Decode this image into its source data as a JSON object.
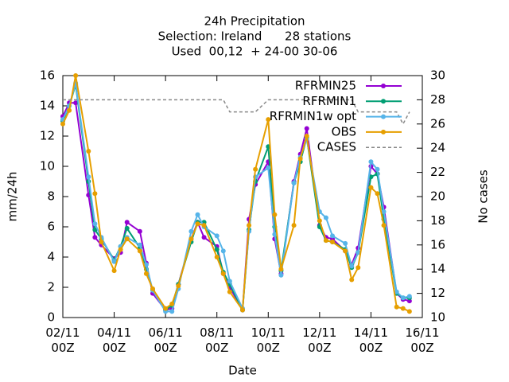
{
  "chart_data": {
    "type": "line",
    "title": [
      "24h Precipitation",
      "Selection: Ireland      28 stations",
      "Used  00,12  + 24-00 30-06"
    ],
    "xlabel": "Date",
    "ylabel": "mm/24h",
    "y2label": "No cases",
    "x": [
      "02/11 00Z",
      "02/11 06Z",
      "02/11 12Z",
      "03/11 00Z",
      "03/11 06Z",
      "03/11 12Z",
      "04/11 00Z",
      "04/11 06Z",
      "04/11 12Z",
      "05/11 00Z",
      "05/11 06Z",
      "05/11 12Z",
      "06/11 00Z",
      "06/11 06Z",
      "06/11 12Z",
      "07/11 00Z",
      "07/11 06Z",
      "07/11 12Z",
      "08/11 00Z",
      "08/11 06Z",
      "08/11 12Z",
      "09/11 00Z",
      "09/11 06Z",
      "09/11 12Z",
      "10/11 00Z",
      "10/11 06Z",
      "10/11 12Z",
      "11/11 00Z",
      "11/11 06Z",
      "11/11 12Z",
      "12/11 00Z",
      "12/11 06Z",
      "12/11 12Z",
      "13/11 00Z",
      "13/11 06Z",
      "13/11 12Z",
      "14/11 00Z",
      "14/11 06Z",
      "14/11 12Z",
      "15/11 00Z",
      "15/11 06Z",
      "15/11 12Z"
    ],
    "series": [
      {
        "name": "RFRMIN25",
        "color": "#9400d3",
        "values": [
          13.3,
          14.2,
          14.2,
          8.1,
          5.3,
          4.8,
          3.9,
          4.3,
          6.3,
          5.7,
          3.6,
          1.6,
          0.5,
          0.6,
          2.2,
          5.2,
          6.3,
          5.3,
          4.7,
          2.9,
          2.0,
          0.5,
          6.5,
          8.8,
          10.3,
          5.2,
          2.9,
          9.0,
          10.8,
          12.5,
          6.1,
          5.3,
          5.2,
          4.4,
          3.5,
          4.6,
          10.0,
          9.5,
          7.3,
          1.6,
          1.2,
          1.1
        ]
      },
      {
        "name": "RFRMIN1",
        "color": "#009e73",
        "values": [
          13.0,
          14.0,
          15.4,
          9.0,
          5.8,
          5.2,
          3.8,
          4.7,
          5.9,
          4.6,
          3.2,
          1.8,
          0.5,
          0.8,
          2.2,
          5.0,
          6.3,
          6.3,
          4.5,
          3.0,
          2.2,
          0.5,
          5.8,
          9.0,
          11.3,
          6.0,
          3.1,
          8.9,
          10.3,
          11.9,
          6.0,
          5.1,
          5.0,
          4.5,
          3.3,
          4.3,
          9.3,
          9.5,
          6.5,
          1.6,
          1.3,
          1.3
        ]
      },
      {
        "name": "RFRMIN1w opt",
        "color": "#56b4e9",
        "values": [
          13.1,
          14.0,
          15.5,
          9.3,
          6.2,
          5.3,
          3.7,
          4.7,
          5.3,
          4.8,
          3.5,
          1.8,
          0.4,
          0.4,
          1.9,
          5.7,
          6.8,
          6.0,
          5.4,
          4.4,
          2.4,
          0.6,
          5.7,
          9.3,
          9.9,
          5.5,
          2.8,
          8.9,
          10.6,
          11.8,
          7.0,
          6.6,
          5.4,
          4.9,
          3.4,
          4.3,
          10.3,
          9.8,
          7.0,
          1.7,
          1.3,
          1.4
        ]
      },
      {
        "name": "OBS",
        "color": "#e69f00",
        "values": [
          12.8,
          13.7,
          16.0,
          11.0,
          8.2,
          5.0,
          3.1,
          4.5,
          5.2,
          4.4,
          2.9,
          1.9,
          0.6,
          0.9,
          2.1,
          5.2,
          6.2,
          6.1,
          4.0,
          2.9,
          1.7,
          0.5,
          6.1,
          9.8,
          13.1,
          6.8,
          3.2,
          6.1,
          10.5,
          12.0,
          6.4,
          5.1,
          5.0,
          4.4,
          2.5,
          3.3,
          8.6,
          8.2,
          6.1,
          0.7,
          0.6,
          0.4
        ]
      },
      {
        "name": "CASES",
        "color": "#888888",
        "dashed": true,
        "axis": "y2",
        "values": [
          28,
          28,
          28,
          28,
          28,
          28,
          28,
          28,
          28,
          28,
          28,
          28,
          28,
          28,
          28,
          28,
          28,
          28,
          28,
          28,
          27,
          27,
          27,
          27,
          28,
          28,
          28,
          28,
          28,
          28,
          28,
          28,
          28,
          28,
          28,
          27,
          27,
          27,
          27,
          27,
          26,
          27
        ]
      }
    ],
    "xlim": [
      "02/11 00Z",
      "16/11 00Z"
    ],
    "xticks": [
      "02/11 00Z",
      "04/11 00Z",
      "06/11 00Z",
      "08/11 00Z",
      "10/11 00Z",
      "12/11 00Z",
      "14/11 00Z",
      "16/11 00Z"
    ],
    "ylim": [
      0,
      16
    ],
    "yticks": [
      0,
      2,
      4,
      6,
      8,
      10,
      12,
      14,
      16
    ],
    "y2lim": [
      10,
      30
    ],
    "y2ticks": [
      10,
      12,
      14,
      16,
      18,
      20,
      22,
      24,
      26,
      28,
      30
    ],
    "legend": "top-right",
    "grid": false
  }
}
